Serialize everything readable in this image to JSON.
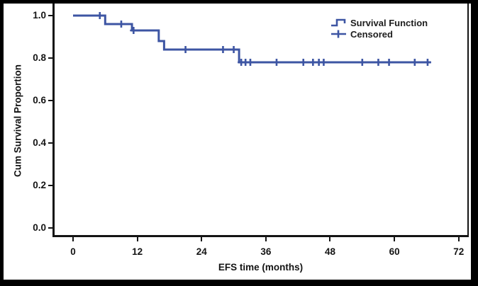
{
  "legend": {
    "survival_label": "Survival Function",
    "censored_label": "Censored"
  },
  "chart_data": {
    "type": "line",
    "subtype": "kaplan_meier_step",
    "title": "",
    "xlabel": "EFS time (months)",
    "ylabel": "Cum Survival Proportion",
    "line_color": "#3d55a3",
    "axis_color": "#141414",
    "background_color": "#ffffff",
    "outer_border_color": "#000000",
    "grid": false,
    "xlim": [
      -4,
      74
    ],
    "ylim": [
      -0.05,
      1.06
    ],
    "x_ticks": [
      0,
      12,
      24,
      36,
      48,
      60,
      72
    ],
    "y_ticks": [
      {
        "v": 0.0,
        "label": "0.0"
      },
      {
        "v": 0.2,
        "label": "0.2"
      },
      {
        "v": 0.4,
        "label": "0.4"
      },
      {
        "v": 0.6,
        "label": "0.6"
      },
      {
        "v": 0.8,
        "label": "0.8"
      },
      {
        "v": 1.0,
        "label": "1.0"
      }
    ],
    "legend_position": "top-right",
    "legend_entries": [
      {
        "label": "Survival Function",
        "glyph": "step-line"
      },
      {
        "label": "Censored",
        "glyph": "plus"
      }
    ],
    "series": [
      {
        "name": "Survival Function",
        "type": "step",
        "points": [
          [
            0,
            1.0
          ],
          [
            6,
            0.96
          ],
          [
            11,
            0.93
          ],
          [
            16,
            0.88
          ],
          [
            17,
            0.84
          ],
          [
            31,
            0.78
          ]
        ],
        "end_x": 66.8
      }
    ],
    "censored_points": [
      [
        5,
        1.0
      ],
      [
        9,
        0.96
      ],
      [
        11.3,
        0.93
      ],
      [
        21,
        0.84
      ],
      [
        28,
        0.84
      ],
      [
        30,
        0.84
      ],
      [
        31.4,
        0.78
      ],
      [
        32.2,
        0.78
      ],
      [
        33.1,
        0.78
      ],
      [
        38,
        0.78
      ],
      [
        43,
        0.78
      ],
      [
        44.8,
        0.78
      ],
      [
        45.9,
        0.78
      ],
      [
        46.8,
        0.78
      ],
      [
        54,
        0.78
      ],
      [
        57,
        0.78
      ],
      [
        59,
        0.78
      ],
      [
        63.8,
        0.78
      ],
      [
        66.2,
        0.78
      ]
    ]
  }
}
